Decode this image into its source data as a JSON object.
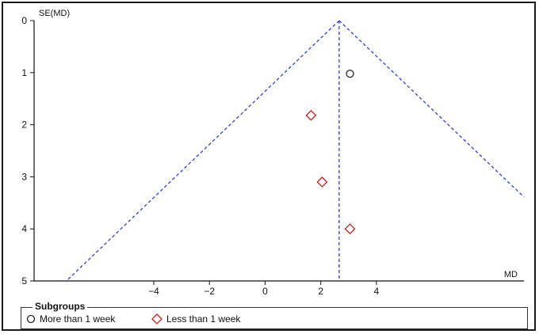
{
  "chart_data": {
    "type": "scatter",
    "title": "",
    "xlabel": "MD",
    "ylabel": "SE(MD)",
    "xlim": [
      -8.3,
      9.3
    ],
    "ylim": [
      5,
      0
    ],
    "y_axis_reversed": true,
    "x_ticks": [
      "-4",
      "-2",
      "0",
      "2",
      "4"
    ],
    "x_tick_values": [
      -4,
      -2,
      0,
      2,
      4
    ],
    "y_ticks": [
      "0",
      "1",
      "2",
      "3",
      "4",
      "5"
    ],
    "y_tick_values": [
      0,
      1,
      2,
      3,
      4,
      5
    ],
    "pooled_estimate": 2.66,
    "funnel_limit_multiplier": 1.96,
    "series": [
      {
        "name": "More than 1 week",
        "marker": "circle",
        "color": "#222222",
        "points": [
          {
            "x": 3.05,
            "y": 1.02
          }
        ]
      },
      {
        "name": "Less than 1 week",
        "marker": "diamond",
        "color": "#cc1f1f",
        "points": [
          {
            "x": 1.65,
            "y": 1.82
          },
          {
            "x": 2.05,
            "y": 3.1
          },
          {
            "x": 3.05,
            "y": 4.0
          }
        ]
      }
    ],
    "reference_line_color": "#2233cc",
    "legend": {
      "title": "Subgroups",
      "placement": "bottom"
    },
    "grid": false
  }
}
